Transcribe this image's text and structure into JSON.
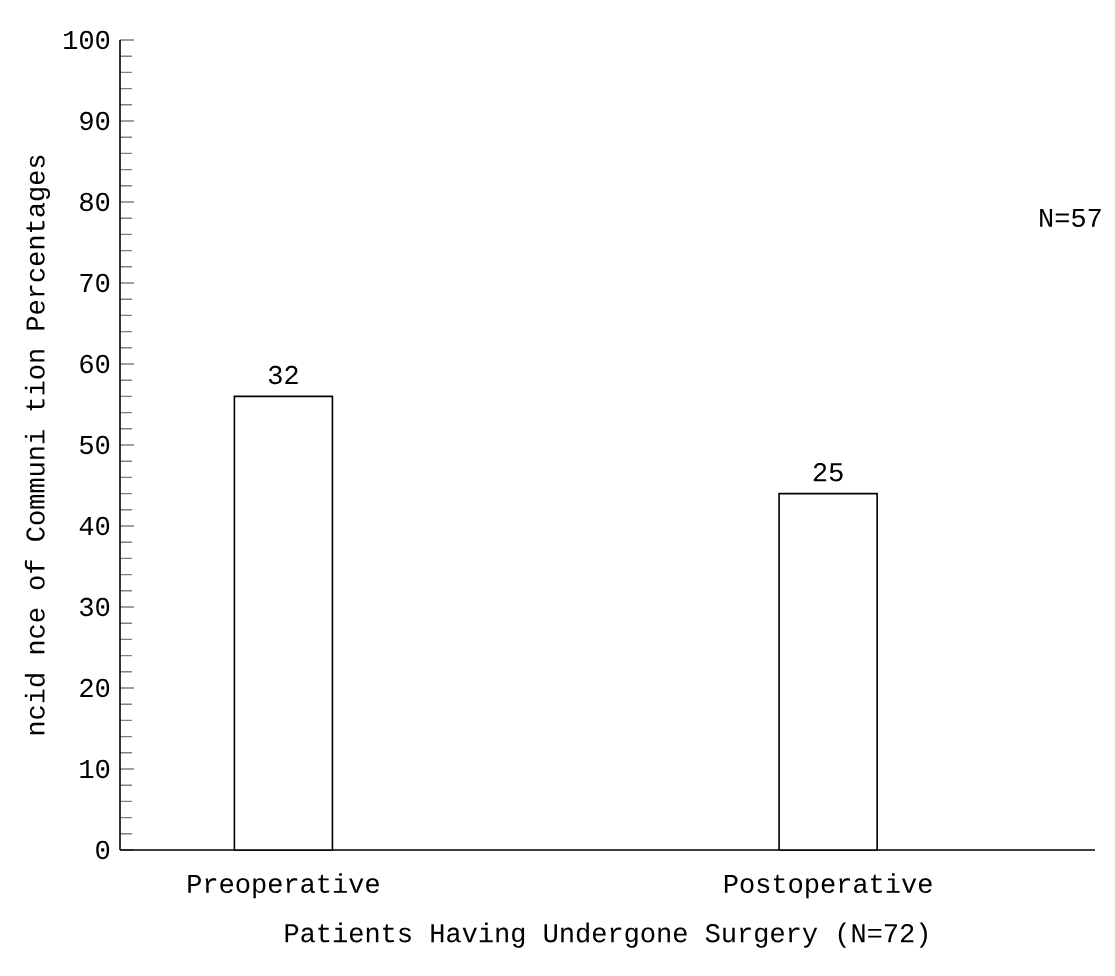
{
  "chart_data": {
    "type": "bar",
    "xlabel": "Patients Having Undergone Surgery (N=72)",
    "ylabel": "ncid nce of Communi tion Percentages",
    "categories": [
      "Preoperative",
      "Postoperative"
    ],
    "values": [
      56,
      44
    ],
    "color": "#ffffff",
    "ylim": [
      0,
      100
    ],
    "yticks": [
      0,
      10,
      20,
      30,
      40,
      50,
      60,
      70,
      80,
      90,
      100
    ],
    "annotations": [
      {
        "text": "32",
        "x": "Preoperative",
        "y": 56
      },
      {
        "text": "25",
        "x": "Postoperative",
        "y": 44
      },
      "N=57"
    ]
  }
}
